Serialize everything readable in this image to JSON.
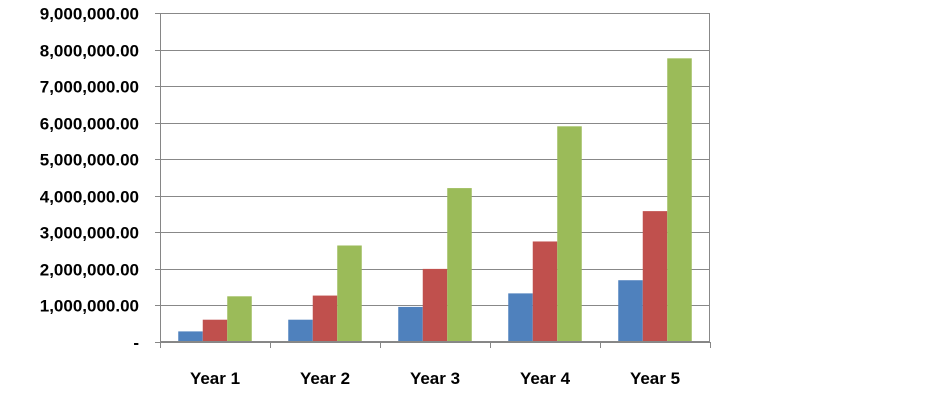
{
  "chart_data": {
    "type": "bar",
    "title": "",
    "xlabel": "",
    "ylabel": "",
    "categories": [
      "Year 1",
      "Year 2",
      "Year 3",
      "Year 4",
      "Year 5"
    ],
    "series": [
      {
        "color": "#4F81BD",
        "values": [
          290000,
          610000,
          960000,
          1330000,
          1690000
        ]
      },
      {
        "color": "#C0504D",
        "values": [
          610000,
          1270000,
          2000000,
          2750000,
          3580000
        ]
      },
      {
        "color": "#9BBB59",
        "values": [
          1250000,
          2640000,
          4210000,
          5900000,
          7760000
        ]
      }
    ],
    "ylim": [
      0,
      9000000
    ],
    "y_ticks": [
      {
        "value": 0,
        "label": "-"
      },
      {
        "value": 1000000,
        "label": "1,000,000.00"
      },
      {
        "value": 2000000,
        "label": "2,000,000.00"
      },
      {
        "value": 3000000,
        "label": "3,000,000.00"
      },
      {
        "value": 4000000,
        "label": "4,000,000.00"
      },
      {
        "value": 5000000,
        "label": "5,000,000.00"
      },
      {
        "value": 6000000,
        "label": "6,000,000.00"
      },
      {
        "value": 7000000,
        "label": "7,000,000.00"
      },
      {
        "value": 8000000,
        "label": "8,000,000.00"
      },
      {
        "value": 9000000,
        "label": "9,000,000.00"
      }
    ],
    "grid": true,
    "legend": "none"
  }
}
